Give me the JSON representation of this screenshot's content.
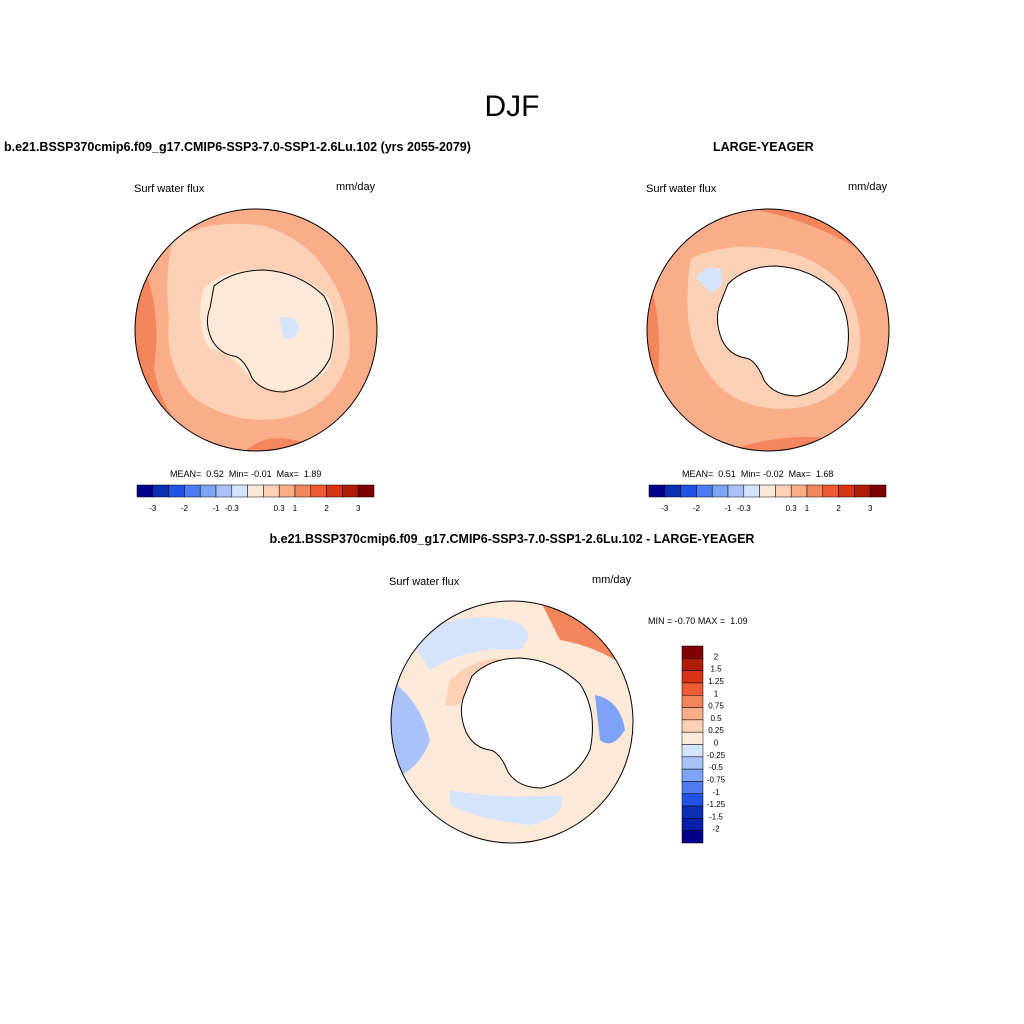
{
  "figure": {
    "title": "DJF"
  },
  "panels": [
    {
      "title": "b.e21.BSSP370cmip6.f09_g17.CMIP6-SSP3-7.0-SSP1-2.6Lu.102 (yrs 2055-2079)",
      "variable": "Surf water flux",
      "units": "mm/day",
      "stats": {
        "mean_label": "MEAN=",
        "mean": "0.52",
        "min_label": "Min=",
        "min": "-0.01",
        "max_label": "Max=",
        "max": "1.89"
      },
      "colorbar": {
        "colors": [
          "#00008b",
          "#0b2fb3",
          "#2352e6",
          "#4f7bf0",
          "#7ea2f5",
          "#a9c3fa",
          "#d4e4fc",
          "#fde9d7",
          "#fcd0b4",
          "#f9ad88",
          "#f5855c",
          "#ec5b33",
          "#d83312",
          "#b01c06",
          "#7f0000"
        ],
        "tick_labels": [
          "-3",
          "-2",
          "-1",
          "-0.3",
          "0.3",
          "1",
          "2",
          "3"
        ]
      }
    },
    {
      "title": "LARGE-YEAGER",
      "variable": "Surf water flux",
      "units": "mm/day",
      "stats": {
        "mean_label": "MEAN=",
        "mean": "0.51",
        "min_label": "Min=",
        "min": "-0.02",
        "max_label": "Max=",
        "max": "1.68"
      },
      "colorbar": {
        "colors": [
          "#00008b",
          "#0b2fb3",
          "#2352e6",
          "#4f7bf0",
          "#7ea2f5",
          "#a9c3fa",
          "#d4e4fc",
          "#fde9d7",
          "#fcd0b4",
          "#f9ad88",
          "#f5855c",
          "#ec5b33",
          "#d83312",
          "#b01c06",
          "#7f0000"
        ],
        "tick_labels": [
          "-3",
          "-2",
          "-1",
          "-0.3",
          "0.3",
          "1",
          "2",
          "3"
        ]
      }
    },
    {
      "title": "b.e21.BSSP370cmip6.f09_g17.CMIP6-SSP3-7.0-SSP1-2.6Lu.102 - LARGE-YEAGER",
      "variable": "Surf water flux",
      "units": "mm/day",
      "stats": {
        "min_label": "MIN =",
        "min": "-0.70",
        "max_label": "MAX =",
        "max": "1.09"
      },
      "colorbar": {
        "colors": [
          "#7f0000",
          "#b01c06",
          "#d83312",
          "#ec5b33",
          "#f5855c",
          "#f9ad88",
          "#fcd0b4",
          "#fde9d7",
          "#d4e4fc",
          "#a9c3fa",
          "#7ea2f5",
          "#4f7bf0",
          "#2352e6",
          "#0b2fb3",
          "#0a1fa8",
          "#00008b"
        ],
        "tick_labels": [
          "2",
          "1.5",
          "1.25",
          "1",
          "0.75",
          "0.5",
          "0.25",
          "0",
          "-0.25",
          "-0.5",
          "-0.75",
          "-1",
          "-1.25",
          "-1.5",
          "-2"
        ]
      }
    }
  ]
}
